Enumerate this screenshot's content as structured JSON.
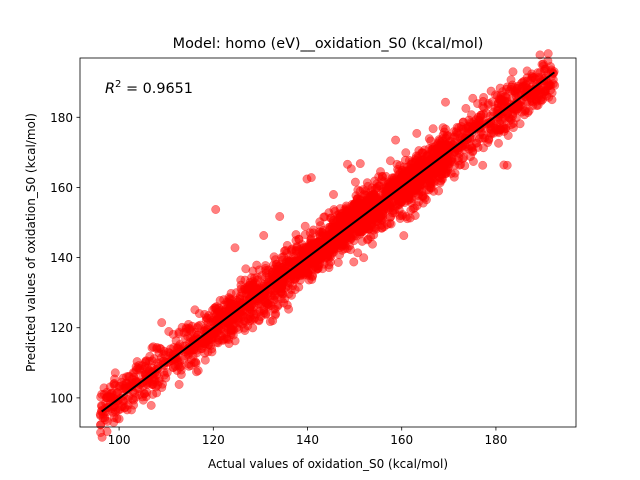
{
  "chart_data": {
    "type": "scatter",
    "title": "Model: homo (eV)__oxidation_S0 (kcal/mol)",
    "xlabel": "Actual values of oxidation_S0 (kcal/mol)",
    "ylabel": "Predicted values of oxidation_S0 (kcal/mol)",
    "xlim": [
      91.7,
      197.0
    ],
    "ylim": [
      91.7,
      196.9
    ],
    "xticks": [
      100,
      120,
      140,
      160,
      180
    ],
    "yticks": [
      100,
      120,
      140,
      160,
      180
    ],
    "annotation": {
      "r2_prefix": "R",
      "r2_exponent": "2",
      "r2_equals": " = ",
      "r2_value": "0.9651"
    },
    "fit_line": {
      "x": [
        96.3,
        192.4
      ],
      "y": [
        96.1,
        192.8
      ]
    },
    "point_color": "#ff0000",
    "line_color": "#000000",
    "legend": "none",
    "grid": false,
    "x_range_of_points": [
      96.0,
      192.5
    ],
    "point_spread": 3.5,
    "outliers": [
      {
        "x": 120.5,
        "y": 153.7
      },
      {
        "x": 124.6,
        "y": 142.8
      },
      {
        "x": 130.7,
        "y": 146.3
      },
      {
        "x": 134.1,
        "y": 151.7
      },
      {
        "x": 139.9,
        "y": 162.4
      },
      {
        "x": 140.8,
        "y": 162.8
      },
      {
        "x": 148.5,
        "y": 166.6
      },
      {
        "x": 149.3,
        "y": 165.3
      },
      {
        "x": 151.2,
        "y": 166.8
      },
      {
        "x": 155.5,
        "y": 164.5
      },
      {
        "x": 157.6,
        "y": 167.6
      },
      {
        "x": 158.7,
        "y": 173.5
      },
      {
        "x": 163.2,
        "y": 175.4
      },
      {
        "x": 173.4,
        "y": 166.2
      },
      {
        "x": 177.2,
        "y": 166.3
      },
      {
        "x": 181.7,
        "y": 166.4
      },
      {
        "x": 182.4,
        "y": 166.3
      },
      {
        "x": 180.6,
        "y": 175.6
      },
      {
        "x": 186.2,
        "y": 185.9
      },
      {
        "x": 189.5,
        "y": 187.0
      },
      {
        "x": 191.9,
        "y": 185.0
      },
      {
        "x": 185.5,
        "y": 188.6
      },
      {
        "x": 175.1,
        "y": 185.4
      },
      {
        "x": 169.3,
        "y": 184.3
      },
      {
        "x": 96.3,
        "y": 101.0
      },
      {
        "x": 98.2,
        "y": 100.3
      },
      {
        "x": 99.6,
        "y": 101.5
      },
      {
        "x": 105.5,
        "y": 109.0
      },
      {
        "x": 108.0,
        "y": 114.0
      },
      {
        "x": 112.7,
        "y": 118.3
      },
      {
        "x": 116.1,
        "y": 125.1
      },
      {
        "x": 123.5,
        "y": 122.4
      },
      {
        "x": 126.9,
        "y": 136.8
      },
      {
        "x": 128.4,
        "y": 131.7
      }
    ]
  }
}
